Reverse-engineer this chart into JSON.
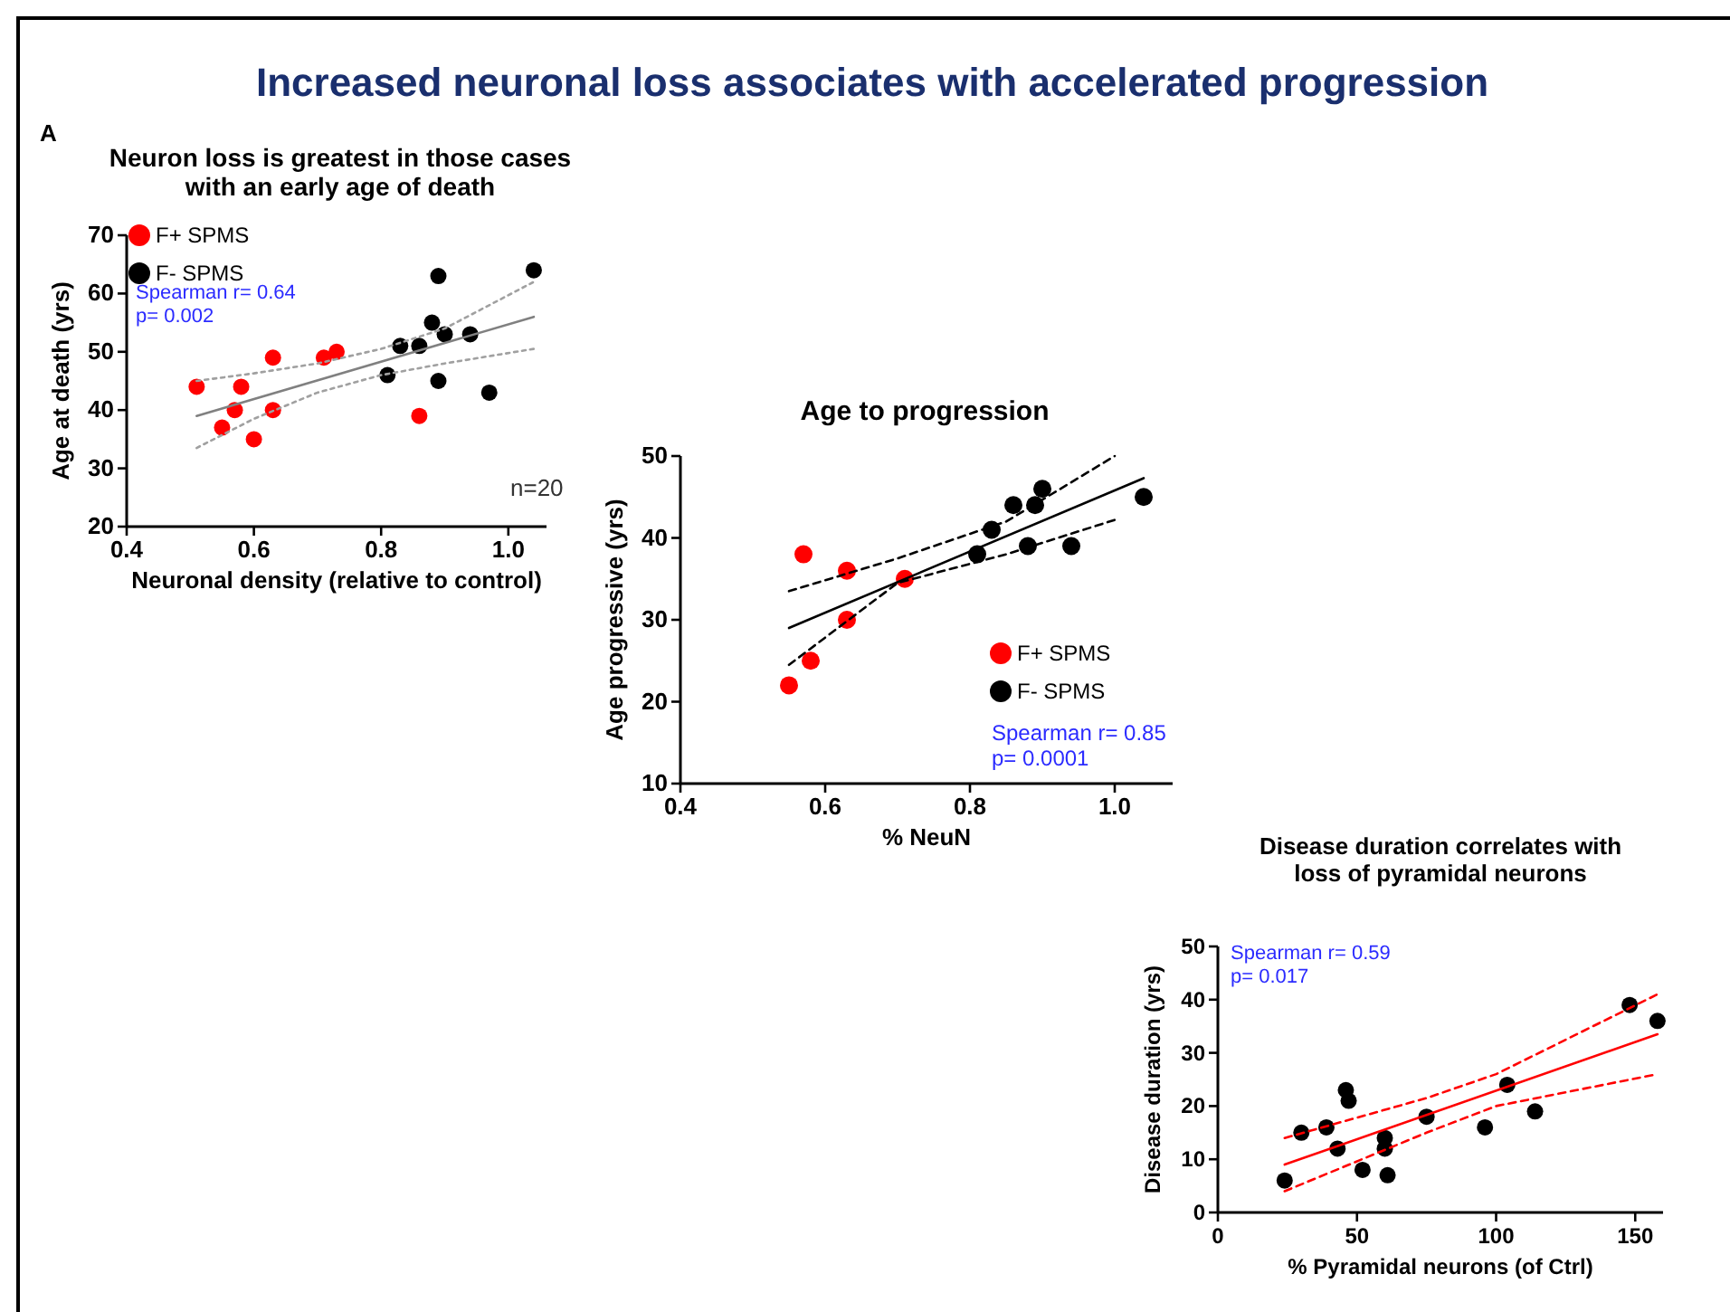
{
  "chart_data": [
    {
      "type": "scatter",
      "title": "Neuron loss is greatest in those cases with an early age of death",
      "xlabel": "Neuronal density (relative to control)",
      "ylabel": "Age at death (yrs)",
      "xlim": [
        0.4,
        1.06
      ],
      "xticks": [
        0.4,
        0.6,
        0.8,
        {
          "value": 1,
          "label": "1.0"
        }
      ],
      "ylim": [
        20,
        70
      ],
      "yticks": [
        20,
        30,
        40,
        50,
        60,
        70
      ],
      "legend": "top left",
      "annotations": [
        "Increased neuronal loss associates with accelerated progression",
        "A",
        "Spearman r= 0.64",
        "p= 0.002",
        "n=20"
      ],
      "series": [
        {
          "name": "F+ SPMS",
          "color": "#ff0000",
          "marker": "circle",
          "x": [
            0.51,
            0.55,
            0.57,
            0.58,
            0.6,
            0.63,
            0.63,
            0.71,
            0.73,
            0.86
          ],
          "values": [
            44,
            37,
            40,
            44,
            35,
            49,
            40,
            49,
            50,
            39
          ]
        },
        {
          "name": "F- SPMS",
          "color": "#000000",
          "marker": "circle",
          "x": [
            0.81,
            0.83,
            0.86,
            0.88,
            0.89,
            0.89,
            0.9,
            0.94,
            0.97,
            1.04
          ],
          "values": [
            46,
            51,
            51,
            55,
            63,
            45,
            53,
            53,
            43,
            64
          ]
        },
        {
          "type": "line",
          "color": "#808080",
          "line_style": "solid",
          "x": [
            0.51,
            1.04
          ],
          "values": [
            39,
            56
          ]
        },
        {
          "type": "line",
          "color": "#a0a0a0",
          "line_style": "dotted",
          "x": [
            0.51,
            0.6,
            0.7,
            0.8,
            0.9,
            1.04
          ],
          "values": [
            45,
            46.3,
            48,
            50.5,
            54,
            62
          ]
        },
        {
          "type": "line",
          "color": "#a0a0a0",
          "line_style": "dotted",
          "x": [
            0.51,
            0.6,
            0.7,
            0.8,
            0.9,
            1.04
          ],
          "values": [
            33.5,
            38.5,
            43,
            46,
            48,
            50.5
          ]
        }
      ]
    },
    {
      "type": "scatter",
      "title": "Age to progression",
      "xlabel": "% NeuN",
      "ylabel": "Age progressive (yrs)",
      "xlim": [
        0.4,
        1.08
      ],
      "xticks": [
        0.4,
        0.6,
        0.8,
        {
          "value": 1,
          "label": "1.0"
        }
      ],
      "ylim": [
        10,
        50
      ],
      "yticks": [
        10,
        20,
        30,
        40,
        50
      ],
      "legend": "bottom right",
      "annotations": [
        "Spearman r= 0.85",
        "p= 0.0001"
      ],
      "series": [
        {
          "name": "F+ SPMS",
          "color": "#ff0000",
          "marker": "circle",
          "x": [
            0.55,
            0.57,
            0.58,
            0.63,
            0.63,
            0.71
          ],
          "values": [
            22,
            38,
            25,
            36,
            30,
            35
          ]
        },
        {
          "name": "F- SPMS",
          "color": "#000000",
          "marker": "circle",
          "x": [
            0.81,
            0.83,
            0.86,
            0.88,
            0.89,
            0.9,
            0.94,
            1.04
          ],
          "values": [
            38,
            41,
            44,
            39,
            44,
            46,
            39,
            45
          ]
        },
        {
          "type": "line",
          "color": "#000000",
          "line_style": "solid",
          "x": [
            0.55,
            1.04
          ],
          "values": [
            29,
            47.3
          ]
        },
        {
          "type": "line",
          "color": "#000000",
          "line_style": "dashed",
          "x": [
            0.55,
            0.7,
            0.85,
            1.0
          ],
          "values": [
            33.5,
            37.5,
            42,
            50
          ]
        },
        {
          "type": "line",
          "color": "#000000",
          "line_style": "dashed",
          "x": [
            0.55,
            0.7,
            0.85,
            1.0
          ],
          "values": [
            24.5,
            34.5,
            38,
            42.2
          ]
        }
      ]
    },
    {
      "type": "scatter",
      "title": "Disease duration correlates with loss of pyramidal neurons",
      "xlabel": "% Pyramidal neurons (of Ctrl)",
      "ylabel": "Disease duration (yrs)",
      "xlim": [
        0,
        160
      ],
      "xticks": [
        0,
        50,
        100,
        150
      ],
      "ylim": [
        0,
        50
      ],
      "yticks": [
        0,
        10,
        20,
        30,
        40,
        50
      ],
      "annotations": [
        "Spearman r= 0.59",
        "p= 0.017"
      ],
      "series": [
        {
          "color": "#000000",
          "marker": "circle",
          "x": [
            24,
            30,
            39,
            43,
            46,
            47,
            52,
            60,
            60,
            61,
            75,
            96,
            104,
            114,
            148,
            158
          ],
          "values": [
            6,
            15,
            16,
            12,
            23,
            21,
            8,
            14,
            12,
            7,
            18,
            16,
            24,
            19,
            39,
            36
          ]
        },
        {
          "type": "line",
          "color": "#ff0000",
          "line_style": "solid",
          "x": [
            24,
            158
          ],
          "values": [
            9,
            33.5
          ]
        },
        {
          "type": "line",
          "color": "#ff0000",
          "line_style": "dashed",
          "x": [
            24,
            75,
            100,
            158
          ],
          "values": [
            14,
            21.5,
            26,
            41
          ]
        },
        {
          "type": "line",
          "color": "#ff0000",
          "line_style": "dashed",
          "x": [
            24,
            75,
            100,
            158
          ],
          "values": [
            4,
            15,
            20,
            26
          ]
        }
      ]
    }
  ]
}
